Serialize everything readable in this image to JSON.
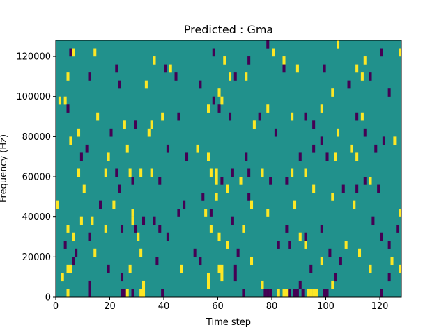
{
  "chart_data": {
    "type": "heatmap",
    "title": "Predicted : Gma",
    "xlabel": "Time step",
    "ylabel": "Frequency (Hz)",
    "xlim": [
      0,
      128
    ],
    "ylim": [
      0,
      128000
    ],
    "x_ticks": [
      0,
      20,
      40,
      60,
      80,
      100,
      120
    ],
    "y_ticks": [
      0,
      20000,
      40000,
      60000,
      80000,
      100000,
      120000
    ],
    "x_tick_labels": [
      "0",
      "20",
      "40",
      "60",
      "80",
      "100",
      "120"
    ],
    "y_tick_labels": [
      "0",
      "20000",
      "40000",
      "60000",
      "80000",
      "100000",
      "120000"
    ],
    "colormap": "viridis",
    "value_levels": [
      -1,
      0,
      1
    ],
    "colors": {
      "-1": "#440154",
      "0": "#21918c",
      "1": "#fde725"
    },
    "background_value": 0,
    "cell_width_steps": 1,
    "cell_height_hz": 4000,
    "cells": [
      {
        "t": 5,
        "f": 122000,
        "v": -1
      },
      {
        "t": 14,
        "f": 122000,
        "v": 1
      },
      {
        "t": 78,
        "f": 126000,
        "v": -1
      },
      {
        "t": 80,
        "f": 122000,
        "v": 1
      },
      {
        "t": 104,
        "f": 126000,
        "v": 1
      },
      {
        "t": 114,
        "f": 118000,
        "v": 1
      },
      {
        "t": 120,
        "f": 122000,
        "v": -1
      },
      {
        "t": 127,
        "f": 122000,
        "v": 1
      },
      {
        "t": 6,
        "f": 122000,
        "v": 1
      },
      {
        "t": 58,
        "f": 122000,
        "v": -1
      },
      {
        "t": 62,
        "f": 118000,
        "v": 1
      },
      {
        "t": 71,
        "f": 118000,
        "v": -1
      },
      {
        "t": 36,
        "f": 118000,
        "v": 1
      },
      {
        "t": 84,
        "f": 118000,
        "v": 1
      },
      {
        "t": 89,
        "f": 114000,
        "v": 1
      },
      {
        "t": 22,
        "f": 114000,
        "v": -1
      },
      {
        "t": 40,
        "f": 114000,
        "v": -1
      },
      {
        "t": 42,
        "f": 114000,
        "v": 1
      },
      {
        "t": 84,
        "f": 114000,
        "v": -1
      },
      {
        "t": 99,
        "f": 114000,
        "v": -1
      },
      {
        "t": 111,
        "f": 114000,
        "v": 1
      },
      {
        "t": 113,
        "f": 110000,
        "v": 1
      },
      {
        "t": 4,
        "f": 110000,
        "v": 1
      },
      {
        "t": 12,
        "f": 110000,
        "v": -1
      },
      {
        "t": 44,
        "f": 110000,
        "v": -1
      },
      {
        "t": 53,
        "f": 106000,
        "v": -1
      },
      {
        "t": 64,
        "f": 110000,
        "v": 1
      },
      {
        "t": 66,
        "f": 110000,
        "v": -1
      },
      {
        "t": 70,
        "f": 110000,
        "v": 1
      },
      {
        "t": 108,
        "f": 106000,
        "v": -1
      },
      {
        "t": 116,
        "f": 110000,
        "v": -1
      },
      {
        "t": 23,
        "f": 106000,
        "v": -1
      },
      {
        "t": 33,
        "f": 106000,
        "v": 1
      },
      {
        "t": 60,
        "f": 102000,
        "v": 1
      },
      {
        "t": 58,
        "f": 98000,
        "v": -1
      },
      {
        "t": 61,
        "f": 98000,
        "v": 1
      },
      {
        "t": 102,
        "f": 102000,
        "v": 1
      },
      {
        "t": 123,
        "f": 102000,
        "v": -1
      },
      {
        "t": 1,
        "f": 98000,
        "v": 1
      },
      {
        "t": 3,
        "f": 98000,
        "v": 1
      },
      {
        "t": 60,
        "f": 94000,
        "v": -1
      },
      {
        "t": 78,
        "f": 94000,
        "v": 1
      },
      {
        "t": 98,
        "f": 94000,
        "v": 1
      },
      {
        "t": 4,
        "f": 94000,
        "v": -1
      },
      {
        "t": 15,
        "f": 90000,
        "v": 1
      },
      {
        "t": 39,
        "f": 90000,
        "v": 1
      },
      {
        "t": 45,
        "f": 90000,
        "v": -1
      },
      {
        "t": 56,
        "f": 94000,
        "v": 1
      },
      {
        "t": 64,
        "f": 90000,
        "v": -1
      },
      {
        "t": 75,
        "f": 90000,
        "v": -1
      },
      {
        "t": 87,
        "f": 90000,
        "v": 1
      },
      {
        "t": 92,
        "f": 90000,
        "v": -1
      },
      {
        "t": 111,
        "f": 90000,
        "v": -1
      },
      {
        "t": 113,
        "f": 90000,
        "v": 1
      },
      {
        "t": 25,
        "f": 86000,
        "v": 1
      },
      {
        "t": 29,
        "f": 86000,
        "v": -1
      },
      {
        "t": 35,
        "f": 86000,
        "v": 1
      },
      {
        "t": 73,
        "f": 86000,
        "v": 1
      },
      {
        "t": 95,
        "f": 86000,
        "v": -1
      },
      {
        "t": 8,
        "f": 82000,
        "v": 1
      },
      {
        "t": 20,
        "f": 82000,
        "v": -1
      },
      {
        "t": 34,
        "f": 82000,
        "v": 1
      },
      {
        "t": 81,
        "f": 82000,
        "v": -1
      },
      {
        "t": 104,
        "f": 82000,
        "v": 1
      },
      {
        "t": 114,
        "f": 82000,
        "v": -1
      },
      {
        "t": 5,
        "f": 78000,
        "v": 1
      },
      {
        "t": 98,
        "f": 78000,
        "v": -1
      },
      {
        "t": 121,
        "f": 78000,
        "v": -1
      },
      {
        "t": 125,
        "f": 78000,
        "v": 1
      },
      {
        "t": 11,
        "f": 74000,
        "v": -1
      },
      {
        "t": 26,
        "f": 74000,
        "v": 1
      },
      {
        "t": 41,
        "f": 74000,
        "v": -1
      },
      {
        "t": 52,
        "f": 74000,
        "v": 1
      },
      {
        "t": 95,
        "f": 74000,
        "v": -1
      },
      {
        "t": 109,
        "f": 74000,
        "v": 1
      },
      {
        "t": 118,
        "f": 74000,
        "v": -1
      },
      {
        "t": 9,
        "f": 70000,
        "v": -1
      },
      {
        "t": 19,
        "f": 70000,
        "v": 1
      },
      {
        "t": 48,
        "f": 70000,
        "v": -1
      },
      {
        "t": 56,
        "f": 70000,
        "v": 1
      },
      {
        "t": 70,
        "f": 70000,
        "v": -1
      },
      {
        "t": 90,
        "f": 70000,
        "v": -1
      },
      {
        "t": 100,
        "f": 70000,
        "v": -1
      },
      {
        "t": 103,
        "f": 70000,
        "v": 1
      },
      {
        "t": 111,
        "f": 70000,
        "v": 1
      },
      {
        "t": 8,
        "f": 62000,
        "v": 1
      },
      {
        "t": 18,
        "f": 62000,
        "v": 1
      },
      {
        "t": 22,
        "f": 62000,
        "v": -1
      },
      {
        "t": 27,
        "f": 62000,
        "v": 1
      },
      {
        "t": 31,
        "f": 62000,
        "v": 1
      },
      {
        "t": 35,
        "f": 62000,
        "v": 1
      },
      {
        "t": 57,
        "f": 62000,
        "v": 1
      },
      {
        "t": 59,
        "f": 62000,
        "v": 1
      },
      {
        "t": 65,
        "f": 62000,
        "v": -1
      },
      {
        "t": 71,
        "f": 62000,
        "v": -1
      },
      {
        "t": 76,
        "f": 62000,
        "v": 1
      },
      {
        "t": 87,
        "f": 62000,
        "v": 1
      },
      {
        "t": 92,
        "f": 62000,
        "v": 1
      },
      {
        "t": 59,
        "f": 58000,
        "v": 1
      },
      {
        "t": 68,
        "f": 58000,
        "v": 1
      },
      {
        "t": 28,
        "f": 58000,
        "v": -1
      },
      {
        "t": 38,
        "f": 58000,
        "v": -1
      },
      {
        "t": 61,
        "f": 58000,
        "v": -1
      },
      {
        "t": 79,
        "f": 58000,
        "v": -1
      },
      {
        "t": 85,
        "f": 58000,
        "v": -1
      },
      {
        "t": 114,
        "f": 58000,
        "v": -1
      },
      {
        "t": 116,
        "f": 58000,
        "v": 1
      },
      {
        "t": 10,
        "f": 54000,
        "v": 1
      },
      {
        "t": 23,
        "f": 54000,
        "v": -1
      },
      {
        "t": 63,
        "f": 54000,
        "v": 1
      },
      {
        "t": 95,
        "f": 54000,
        "v": 1
      },
      {
        "t": 106,
        "f": 54000,
        "v": -1
      },
      {
        "t": 111,
        "f": 54000,
        "v": -1
      },
      {
        "t": 119,
        "f": 54000,
        "v": -1
      },
      {
        "t": 54,
        "f": 50000,
        "v": -1
      },
      {
        "t": 59,
        "f": 50000,
        "v": 1
      },
      {
        "t": 71,
        "f": 50000,
        "v": -1
      },
      {
        "t": 102,
        "f": 50000,
        "v": 1
      },
      {
        "t": 0,
        "f": 46000,
        "v": 1
      },
      {
        "t": 16,
        "f": 46000,
        "v": -1
      },
      {
        "t": 21,
        "f": 46000,
        "v": 1
      },
      {
        "t": 47,
        "f": 46000,
        "v": -1
      },
      {
        "t": 72,
        "f": 46000,
        "v": 1
      },
      {
        "t": 88,
        "f": 46000,
        "v": 1
      },
      {
        "t": 110,
        "f": 46000,
        "v": 1
      },
      {
        "t": 28,
        "f": 42000,
        "v": 1
      },
      {
        "t": 45,
        "f": 42000,
        "v": -1
      },
      {
        "t": 55,
        "f": 42000,
        "v": 1
      },
      {
        "t": 57,
        "f": 42000,
        "v": -1
      },
      {
        "t": 78,
        "f": 42000,
        "v": 1
      },
      {
        "t": 127,
        "f": 42000,
        "v": 1
      },
      {
        "t": 9,
        "f": 38000,
        "v": 1
      },
      {
        "t": 13,
        "f": 38000,
        "v": 1
      },
      {
        "t": 28,
        "f": 38000,
        "v": 1
      },
      {
        "t": 32,
        "f": 38000,
        "v": -1
      },
      {
        "t": 36,
        "f": 38000,
        "v": -1
      },
      {
        "t": 65,
        "f": 38000,
        "v": -1
      },
      {
        "t": 117,
        "f": 38000,
        "v": -1
      },
      {
        "t": 4,
        "f": 34000,
        "v": 1
      },
      {
        "t": 18,
        "f": 34000,
        "v": 1
      },
      {
        "t": 24,
        "f": 34000,
        "v": -1
      },
      {
        "t": 29,
        "f": 34000,
        "v": -1
      },
      {
        "t": 38,
        "f": 34000,
        "v": -1
      },
      {
        "t": 57,
        "f": 34000,
        "v": 1
      },
      {
        "t": 69,
        "f": 34000,
        "v": 1
      },
      {
        "t": 85,
        "f": 34000,
        "v": -1
      },
      {
        "t": 98,
        "f": 34000,
        "v": -1
      },
      {
        "t": 126,
        "f": 34000,
        "v": -1
      },
      {
        "t": 6,
        "f": 30000,
        "v": 1
      },
      {
        "t": 12,
        "f": 30000,
        "v": -1
      },
      {
        "t": 30,
        "f": 30000,
        "v": 1
      },
      {
        "t": 41,
        "f": 30000,
        "v": -1
      },
      {
        "t": 60,
        "f": 30000,
        "v": 1
      },
      {
        "t": 90,
        "f": 30000,
        "v": 1
      },
      {
        "t": 92,
        "f": 30000,
        "v": -1
      },
      {
        "t": 120,
        "f": 30000,
        "v": -1
      },
      {
        "t": 3,
        "f": 26000,
        "v": -1
      },
      {
        "t": 63,
        "f": 26000,
        "v": 1
      },
      {
        "t": 82,
        "f": 26000,
        "v": -1
      },
      {
        "t": 86,
        "f": 26000,
        "v": -1
      },
      {
        "t": 92,
        "f": 26000,
        "v": 1
      },
      {
        "t": 107,
        "f": 26000,
        "v": 1
      },
      {
        "t": 123,
        "f": 26000,
        "v": -1
      },
      {
        "t": 7,
        "f": 22000,
        "v": -1
      },
      {
        "t": 14,
        "f": 22000,
        "v": 1
      },
      {
        "t": 31,
        "f": 22000,
        "v": 1
      },
      {
        "t": 51,
        "f": 22000,
        "v": -1
      },
      {
        "t": 67,
        "f": 22000,
        "v": -1
      },
      {
        "t": 101,
        "f": 22000,
        "v": -1
      },
      {
        "t": 112,
        "f": 22000,
        "v": 1
      },
      {
        "t": 6,
        "f": 18000,
        "v": -1
      },
      {
        "t": 37,
        "f": 18000,
        "v": -1
      },
      {
        "t": 53,
        "f": 18000,
        "v": -1
      },
      {
        "t": 72,
        "f": 18000,
        "v": 1
      },
      {
        "t": 98,
        "f": 18000,
        "v": 1
      },
      {
        "t": 105,
        "f": 18000,
        "v": -1
      },
      {
        "t": 124,
        "f": 18000,
        "v": 1
      },
      {
        "t": 4,
        "f": 14000,
        "v": 1
      },
      {
        "t": 5,
        "f": 14000,
        "v": 1
      },
      {
        "t": 19,
        "f": 14000,
        "v": -1
      },
      {
        "t": 27,
        "f": 14000,
        "v": 1
      },
      {
        "t": 46,
        "f": 14000,
        "v": 1
      },
      {
        "t": 60,
        "f": 14000,
        "v": 1
      },
      {
        "t": 61,
        "f": 14000,
        "v": 1
      },
      {
        "t": 66,
        "f": 14000,
        "v": -1
      },
      {
        "t": 94,
        "f": 14000,
        "v": -1
      },
      {
        "t": 116,
        "f": 14000,
        "v": 1
      },
      {
        "t": 127,
        "f": 14000,
        "v": 1
      },
      {
        "t": 2,
        "f": 10000,
        "v": 1
      },
      {
        "t": 24,
        "f": 10000,
        "v": -1
      },
      {
        "t": 56,
        "f": 10000,
        "v": 1
      },
      {
        "t": 61,
        "f": 10000,
        "v": 1
      },
      {
        "t": 66,
        "f": 10000,
        "v": -1
      },
      {
        "t": 103,
        "f": 10000,
        "v": -1
      },
      {
        "t": 123,
        "f": 10000,
        "v": -1
      },
      {
        "t": 12,
        "f": 6000,
        "v": -1
      },
      {
        "t": 32,
        "f": 6000,
        "v": 1
      },
      {
        "t": 56,
        "f": 6000,
        "v": 1
      },
      {
        "t": 76,
        "f": 6000,
        "v": 1
      },
      {
        "t": 90,
        "f": 6000,
        "v": -1
      },
      {
        "t": 102,
        "f": 6000,
        "v": 1
      },
      {
        "t": 4,
        "f": 2000,
        "v": 1
      },
      {
        "t": 12,
        "f": 2000,
        "v": -1
      },
      {
        "t": 24,
        "f": 2000,
        "v": -1
      },
      {
        "t": 25,
        "f": 2000,
        "v": -1
      },
      {
        "t": 26,
        "f": 2000,
        "v": 1
      },
      {
        "t": 28,
        "f": 2000,
        "v": -1
      },
      {
        "t": 31,
        "f": 2000,
        "v": 1
      },
      {
        "t": 32,
        "f": 2000,
        "v": 1
      },
      {
        "t": 39,
        "f": 2000,
        "v": -1
      },
      {
        "t": 69,
        "f": 2000,
        "v": -1
      },
      {
        "t": 77,
        "f": 2000,
        "v": -1
      },
      {
        "t": 78,
        "f": 2000,
        "v": -1
      },
      {
        "t": 79,
        "f": 2000,
        "v": -1
      },
      {
        "t": 82,
        "f": 2000,
        "v": 1
      },
      {
        "t": 84,
        "f": 2000,
        "v": 1
      },
      {
        "t": 85,
        "f": 2000,
        "v": 1
      },
      {
        "t": 86,
        "f": 2000,
        "v": -1
      },
      {
        "t": 88,
        "f": 2000,
        "v": -1
      },
      {
        "t": 89,
        "f": 2000,
        "v": -1
      },
      {
        "t": 91,
        "f": 2000,
        "v": -1
      },
      {
        "t": 93,
        "f": 2000,
        "v": 1
      },
      {
        "t": 94,
        "f": 2000,
        "v": 1
      },
      {
        "t": 95,
        "f": 2000,
        "v": 1
      },
      {
        "t": 96,
        "f": 2000,
        "v": 1
      },
      {
        "t": 99,
        "f": 2000,
        "v": -1
      },
      {
        "t": 100,
        "f": 2000,
        "v": -1
      },
      {
        "t": 120,
        "f": 2000,
        "v": -1
      }
    ]
  }
}
